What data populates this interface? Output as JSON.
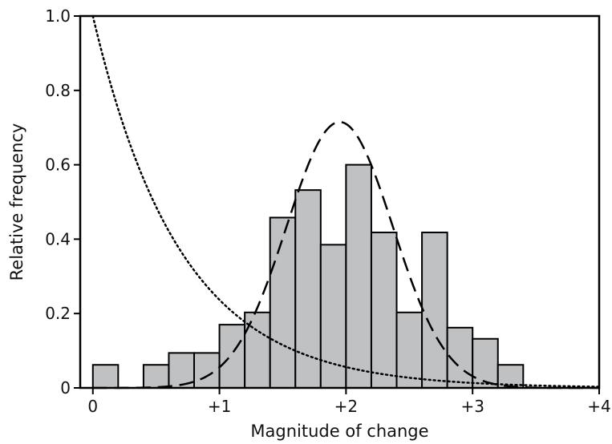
{
  "chart_data": {
    "type": "bar",
    "xlabel": "Magnitude of change",
    "ylabel": "Relative frequency",
    "xlim": [
      -0.1,
      4.0
    ],
    "ylim": [
      0,
      1.0
    ],
    "x_ticks": [
      {
        "value": 0,
        "label": "0"
      },
      {
        "value": 1,
        "label": "+1"
      },
      {
        "value": 2,
        "label": "+2"
      },
      {
        "value": 3,
        "label": "+3"
      },
      {
        "value": 4,
        "label": "+4"
      }
    ],
    "y_ticks": [
      {
        "value": 0,
        "label": "0"
      },
      {
        "value": 0.2,
        "label": "0.2"
      },
      {
        "value": 0.4,
        "label": "0.4"
      },
      {
        "value": 0.6,
        "label": "0.6"
      },
      {
        "value": 0.8,
        "label": "0.8"
      },
      {
        "value": 1.0,
        "label": "1.0"
      }
    ],
    "bin_width": 0.2,
    "bins": [
      {
        "start": 0.0,
        "value": 0.062
      },
      {
        "start": 0.2,
        "value": 0.0
      },
      {
        "start": 0.4,
        "value": 0.062
      },
      {
        "start": 0.6,
        "value": 0.094
      },
      {
        "start": 0.8,
        "value": 0.094
      },
      {
        "start": 1.0,
        "value": 0.17
      },
      {
        "start": 1.2,
        "value": 0.203
      },
      {
        "start": 1.4,
        "value": 0.458
      },
      {
        "start": 1.6,
        "value": 0.532
      },
      {
        "start": 1.8,
        "value": 0.385
      },
      {
        "start": 2.0,
        "value": 0.6
      },
      {
        "start": 2.2,
        "value": 0.418
      },
      {
        "start": 2.4,
        "value": 0.203
      },
      {
        "start": 2.6,
        "value": 0.418
      },
      {
        "start": 2.8,
        "value": 0.162
      },
      {
        "start": 3.0,
        "value": 0.132
      },
      {
        "start": 3.2,
        "value": 0.062
      }
    ],
    "curves": [
      {
        "style": "dashed",
        "kind": "gaussian",
        "peak": 0.715,
        "mean": 1.95,
        "sd": 0.42,
        "x_range": [
          0.0,
          4.0
        ]
      },
      {
        "style": "dotted",
        "kind": "exponential_decay",
        "start_value": 1.0,
        "decay_rate": 1.44,
        "x_range": [
          0.0,
          4.0
        ]
      }
    ],
    "bar_fill": "#c0c1c3",
    "bar_stroke": "#000000",
    "grid": false,
    "legend": "none"
  }
}
